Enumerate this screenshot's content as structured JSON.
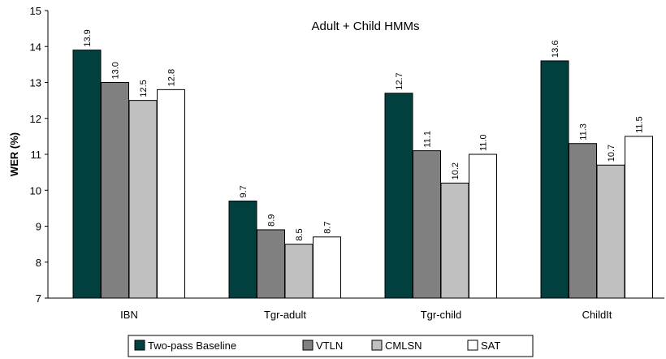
{
  "chart_data": {
    "type": "bar",
    "title": "Adult + Child HMMs",
    "xlabel": "",
    "ylabel": "WER (%)",
    "ylim": [
      7,
      15
    ],
    "y_ticks": [
      "7",
      "8",
      "9",
      "10",
      "11",
      "12",
      "13",
      "14",
      "15"
    ],
    "categories": [
      "IBN",
      "Tgr-adult",
      "Tgr-child",
      "ChildIt"
    ],
    "series": [
      {
        "name": "Two-pass Baseline",
        "color": "#024040",
        "values": [
          13.9,
          9.7,
          12.7,
          13.6
        ],
        "labels": [
          "13.9",
          "9.7",
          "12.7",
          "13.6"
        ]
      },
      {
        "name": "VTLN",
        "color": "#808080",
        "values": [
          13.0,
          8.9,
          11.1,
          11.3
        ],
        "labels": [
          "13.0",
          "8.9",
          "11.1",
          "11.3"
        ]
      },
      {
        "name": "CMLSN",
        "color": "#c0c0c0",
        "values": [
          12.5,
          8.5,
          10.2,
          10.7
        ],
        "labels": [
          "12.5",
          "8.5",
          "10.2",
          "10.7"
        ]
      },
      {
        "name": "SAT",
        "color": "#ffffff",
        "values": [
          12.8,
          8.7,
          11.0,
          11.5
        ],
        "labels": [
          "12.8",
          "8.7",
          "11.0",
          "11.5"
        ]
      }
    ],
    "grid": false,
    "legend_position": "bottom"
  }
}
